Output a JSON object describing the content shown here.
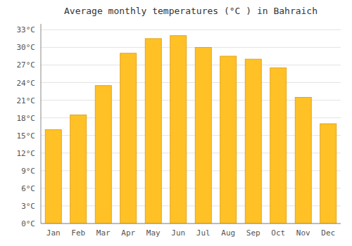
{
  "chart_data": {
    "type": "bar",
    "title": "Average monthly temperatures (°C ) in Bahraich",
    "categories": [
      "Jan",
      "Feb",
      "Mar",
      "Apr",
      "May",
      "Jun",
      "Jul",
      "Aug",
      "Sep",
      "Oct",
      "Nov",
      "Dec"
    ],
    "values": [
      16,
      18.5,
      23.5,
      29,
      31.5,
      32,
      30,
      28.5,
      28,
      26.5,
      21.5,
      17
    ],
    "color": "#FFC125",
    "ylim": [
      0,
      34
    ],
    "yticks": [
      {
        "value": 0,
        "label": "0°C"
      },
      {
        "value": 3,
        "label": "3°C"
      },
      {
        "value": 6,
        "label": "6°C"
      },
      {
        "value": 9,
        "label": "9°C"
      },
      {
        "value": 12,
        "label": "12°C"
      },
      {
        "value": 15,
        "label": "15°C"
      },
      {
        "value": 18,
        "label": "18°C"
      },
      {
        "value": 21,
        "label": "21°C"
      },
      {
        "value": 24,
        "label": "24°C"
      },
      {
        "value": 27,
        "label": "27°C"
      },
      {
        "value": 30,
        "label": "30°C"
      },
      {
        "value": 33,
        "label": "33°C"
      }
    ],
    "grid": true
  }
}
